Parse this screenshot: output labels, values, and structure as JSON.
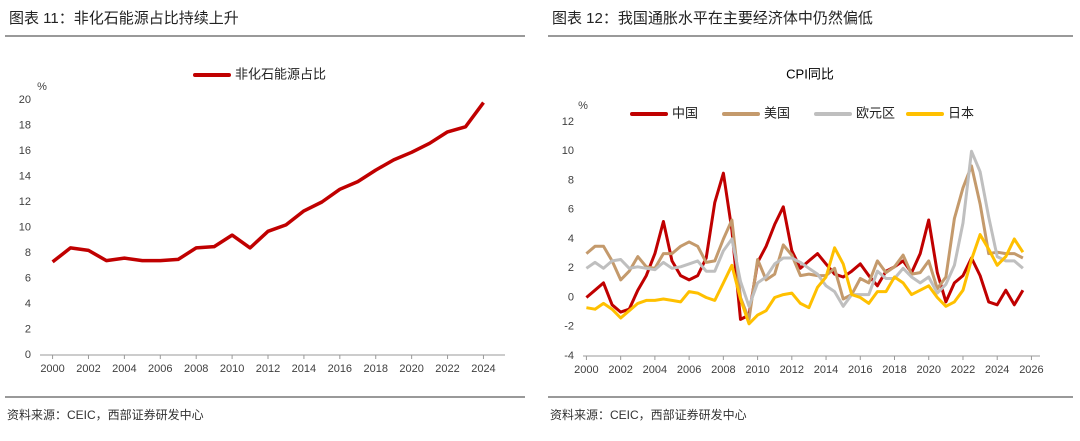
{
  "chart_data": [
    {
      "type": "line",
      "title": "图表 11：非化石能源占比持续上升",
      "y_unit": "%",
      "source": "资料来源：CEIC，西部证券研发中心",
      "x": [
        2000,
        2001,
        2002,
        2003,
        2004,
        2005,
        2006,
        2007,
        2008,
        2009,
        2010,
        2011,
        2012,
        2013,
        2014,
        2015,
        2016,
        2017,
        2018,
        2019,
        2020,
        2021,
        2022,
        2023,
        2024
      ],
      "series": [
        {
          "name": "非化石能源占比",
          "color": "#c00000",
          "values": [
            7.3,
            8.4,
            8.2,
            7.4,
            7.6,
            7.4,
            7.4,
            7.5,
            8.4,
            8.5,
            9.4,
            8.4,
            9.7,
            10.2,
            11.3,
            12.0,
            13.0,
            13.6,
            14.5,
            15.3,
            15.9,
            16.6,
            17.5,
            17.9,
            19.8
          ]
        }
      ],
      "xlim": [
        1999.3,
        2025.2
      ],
      "xticks": [
        2000,
        2002,
        2004,
        2006,
        2008,
        2010,
        2012,
        2014,
        2016,
        2018,
        2020,
        2022,
        2024
      ],
      "ylim": [
        0,
        20
      ],
      "yticks": [
        0,
        2,
        4,
        6,
        8,
        10,
        12,
        14,
        16,
        18,
        20
      ],
      "grid": false
    },
    {
      "type": "line",
      "title": "图表 12：我国通胀水平在主要经济体中仍然偏低",
      "subtitle": "CPI同比",
      "y_unit": "%",
      "source": "资料来源：CEIC，西部证券研发中心",
      "x": [
        2000,
        2000.5,
        2001,
        2001.5,
        2002,
        2002.5,
        2003,
        2003.5,
        2004,
        2004.5,
        2005,
        2005.5,
        2006,
        2006.5,
        2007,
        2007.5,
        2008,
        2008.5,
        2009,
        2009.5,
        2010,
        2010.5,
        2011,
        2011.5,
        2012,
        2012.5,
        2013,
        2013.5,
        2014,
        2014.5,
        2015,
        2015.5,
        2016,
        2016.5,
        2017,
        2017.5,
        2018,
        2018.5,
        2019,
        2019.5,
        2020,
        2020.5,
        2021,
        2021.5,
        2022,
        2022.5,
        2023,
        2023.5,
        2024,
        2024.5,
        2025,
        2025.5
      ],
      "series": [
        {
          "name": "中国",
          "color": "#c00000",
          "values": [
            0,
            0.5,
            1.0,
            -0.5,
            -1.0,
            -0.8,
            0.5,
            1.5,
            3.0,
            5.2,
            2.5,
            1.5,
            1.2,
            1.5,
            2.7,
            6.5,
            8.5,
            4.6,
            -1.5,
            -1.2,
            2.4,
            3.5,
            5.0,
            6.2,
            3.2,
            2.0,
            2.5,
            3.0,
            2.3,
            1.6,
            1.4,
            1.8,
            2.3,
            1.5,
            0.8,
            1.8,
            2.1,
            2.5,
            1.7,
            3.0,
            5.3,
            1.7,
            -0.3,
            1.0,
            1.5,
            2.7,
            1.5,
            -0.3,
            -0.5,
            0.5,
            -0.5,
            0.5
          ]
        },
        {
          "name": "美国",
          "color": "#c49a6c",
          "values": [
            3.0,
            3.5,
            3.5,
            2.5,
            1.2,
            1.8,
            2.8,
            2.1,
            2.0,
            3.0,
            3.0,
            3.5,
            3.8,
            3.5,
            2.4,
            2.5,
            4.0,
            5.3,
            0.0,
            -1.5,
            2.6,
            1.2,
            1.6,
            3.6,
            2.9,
            1.5,
            1.6,
            1.5,
            1.5,
            2.0,
            -0.1,
            0.2,
            1.3,
            1.0,
            2.5,
            1.7,
            2.1,
            2.9,
            1.6,
            1.7,
            2.5,
            0.6,
            1.4,
            5.4,
            7.5,
            9.0,
            6.4,
            3.0,
            3.1,
            3.0,
            3.0,
            2.7
          ]
        },
        {
          "name": "欧元区",
          "color": "#bfbfbf",
          "values": [
            2.0,
            2.4,
            2.0,
            2.5,
            2.6,
            2.0,
            2.1,
            2.0,
            1.9,
            2.4,
            2.0,
            2.1,
            2.3,
            2.5,
            1.8,
            1.8,
            3.2,
            4.0,
            1.1,
            -0.6,
            1.0,
            1.4,
            2.3,
            2.7,
            2.7,
            2.4,
            2.0,
            1.6,
            0.8,
            0.4,
            -0.6,
            0.2,
            0.2,
            0.2,
            1.8,
            1.3,
            1.3,
            2.0,
            1.4,
            1.0,
            1.4,
            0.3,
            0.9,
            2.2,
            5.1,
            10.0,
            8.6,
            5.5,
            2.8,
            2.5,
            2.5,
            2.0
          ]
        },
        {
          "name": "日本",
          "color": "#ffc000",
          "values": [
            -0.7,
            -0.8,
            -0.4,
            -0.8,
            -1.4,
            -0.9,
            -0.4,
            -0.2,
            -0.2,
            -0.1,
            -0.2,
            -0.3,
            0.4,
            0.3,
            0.0,
            -0.2,
            1.0,
            2.2,
            -0.1,
            -1.8,
            -1.2,
            -0.9,
            0.0,
            0.2,
            0.3,
            -0.4,
            -0.7,
            0.7,
            1.4,
            3.4,
            2.3,
            0.2,
            0.0,
            -0.4,
            0.4,
            0.4,
            1.4,
            1.0,
            0.2,
            0.5,
            0.8,
            0.0,
            -0.6,
            -0.3,
            0.5,
            2.6,
            4.3,
            3.3,
            2.2,
            2.8,
            4.0,
            3.1
          ]
        }
      ],
      "xlim": [
        1999.8,
        2026.5
      ],
      "xticks": [
        2000,
        2002,
        2004,
        2006,
        2008,
        2010,
        2012,
        2014,
        2016,
        2018,
        2020,
        2022,
        2024,
        2026
      ],
      "ylim": [
        -4,
        12
      ],
      "yticks": [
        -4,
        -2,
        0,
        2,
        4,
        6,
        8,
        10,
        12
      ],
      "grid": false
    }
  ]
}
